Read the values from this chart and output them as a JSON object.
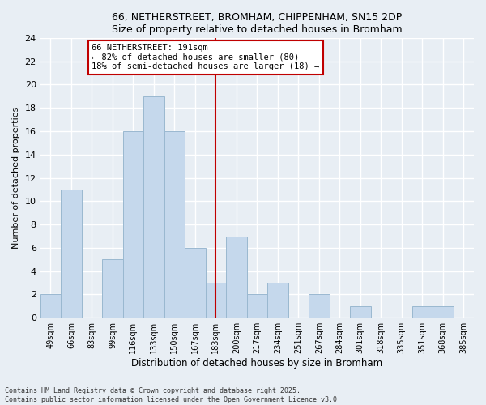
{
  "title": "66, NETHERSTREET, BROMHAM, CHIPPENHAM, SN15 2DP",
  "subtitle": "Size of property relative to detached houses in Bromham",
  "xlabel": "Distribution of detached houses by size in Bromham",
  "ylabel": "Number of detached properties",
  "categories": [
    "49sqm",
    "66sqm",
    "83sqm",
    "99sqm",
    "116sqm",
    "133sqm",
    "150sqm",
    "167sqm",
    "183sqm",
    "200sqm",
    "217sqm",
    "234sqm",
    "251sqm",
    "267sqm",
    "284sqm",
    "301sqm",
    "318sqm",
    "335sqm",
    "351sqm",
    "368sqm",
    "385sqm"
  ],
  "values": [
    2,
    11,
    0,
    5,
    16,
    19,
    16,
    6,
    3,
    7,
    2,
    3,
    0,
    2,
    0,
    1,
    0,
    0,
    1,
    1,
    0
  ],
  "highlight_index": 8,
  "vline_color": "#c00000",
  "bar_color": "#c5d8ec",
  "bar_edge_color": "#9ab8d0",
  "ylim": [
    0,
    24
  ],
  "yticks": [
    0,
    2,
    4,
    6,
    8,
    10,
    12,
    14,
    16,
    18,
    20,
    22,
    24
  ],
  "annotation_text": "66 NETHERSTREET: 191sqm\n← 82% of detached houses are smaller (80)\n18% of semi-detached houses are larger (18) →",
  "annotation_box_color": "#c00000",
  "footer": "Contains HM Land Registry data © Crown copyright and database right 2025.\nContains public sector information licensed under the Open Government Licence v3.0.",
  "background_color": "#e8eef4",
  "plot_background_color": "#e8eef4",
  "grid_color": "#ffffff"
}
